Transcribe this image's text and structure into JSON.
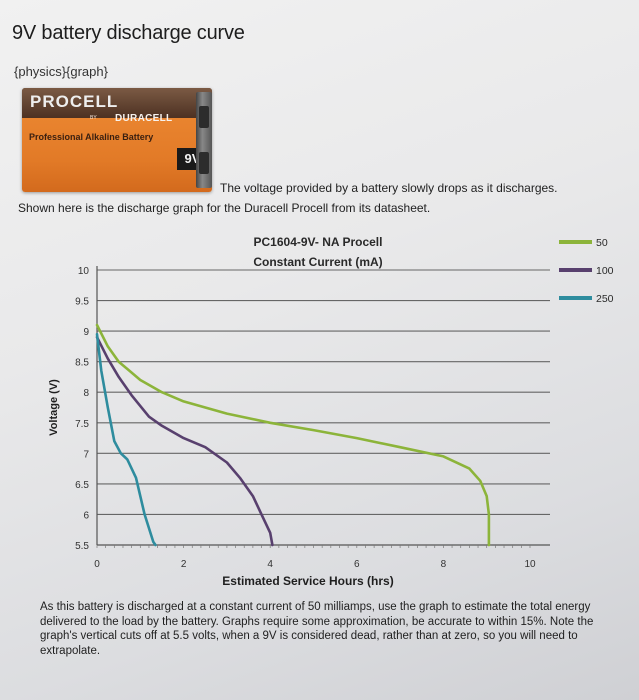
{
  "header": {
    "title": "9V battery discharge curve",
    "tags": "{physics}{graph}"
  },
  "battery_image": {
    "brand": "PROCELL",
    "sub_brand_prefix": "BY",
    "sub_brand": "DURACELL",
    "description": "Professional Alkaline Battery",
    "voltage": "9V"
  },
  "intro": {
    "line1": "The voltage provided by a battery slowly drops as it discharges.",
    "line2": "Shown here is the discharge graph for the Duracell Procell from its datasheet."
  },
  "chart_data": {
    "type": "line",
    "title": "PC1604-9V- NA Procell",
    "subtitle": "Constant Current (mA)",
    "xlabel": "Estimated Service Hours (hrs)",
    "ylabel": "Voltage (V)",
    "xlim": [
      0,
      10
    ],
    "ylim": [
      5.5,
      10
    ],
    "x_ticks": [
      "0",
      "2",
      "4",
      "6",
      "8",
      "10"
    ],
    "y_ticks": [
      "5.5",
      "6",
      "6.5",
      "7",
      "7.5",
      "8",
      "8.5",
      "9",
      "9.5",
      "10"
    ],
    "grid": "horizontal",
    "legend_position": "top-right",
    "series": [
      {
        "name": "50",
        "color": "#8cb43a",
        "x": [
          0,
          0.25,
          0.5,
          1,
          1.5,
          2,
          3,
          4,
          5,
          6,
          7,
          8,
          8.6,
          8.85,
          9.0,
          9.05,
          9.05
        ],
        "y": [
          9.1,
          8.75,
          8.5,
          8.2,
          8.0,
          7.85,
          7.65,
          7.5,
          7.38,
          7.25,
          7.1,
          6.95,
          6.75,
          6.55,
          6.3,
          6.0,
          5.5
        ]
      },
      {
        "name": "100",
        "color": "#58406e",
        "x": [
          0,
          0.25,
          0.5,
          0.8,
          1.2,
          1.5,
          2,
          2.5,
          3,
          3.3,
          3.6,
          3.8,
          4.0,
          4.05
        ],
        "y": [
          8.9,
          8.55,
          8.25,
          7.95,
          7.6,
          7.45,
          7.25,
          7.1,
          6.85,
          6.6,
          6.3,
          6.0,
          5.7,
          5.5
        ]
      },
      {
        "name": "250",
        "color": "#2e8c9e",
        "x": [
          0,
          0.1,
          0.25,
          0.4,
          0.55,
          0.7,
          0.9,
          1.1,
          1.3,
          1.35
        ],
        "y": [
          8.95,
          8.35,
          7.75,
          7.2,
          7.0,
          6.9,
          6.6,
          6.0,
          5.55,
          5.5
        ]
      }
    ]
  },
  "question": {
    "text": "As this battery is discharged at a constant current of 50 milliamps, use the graph to estimate the total energy delivered to the load by the battery. Graphs require some approximation, be accurate to within 15%. Note the graph's vertical cuts off at 5.5 volts, when a 9V is considered dead, rather than at zero, so you will need to extrapolate."
  }
}
